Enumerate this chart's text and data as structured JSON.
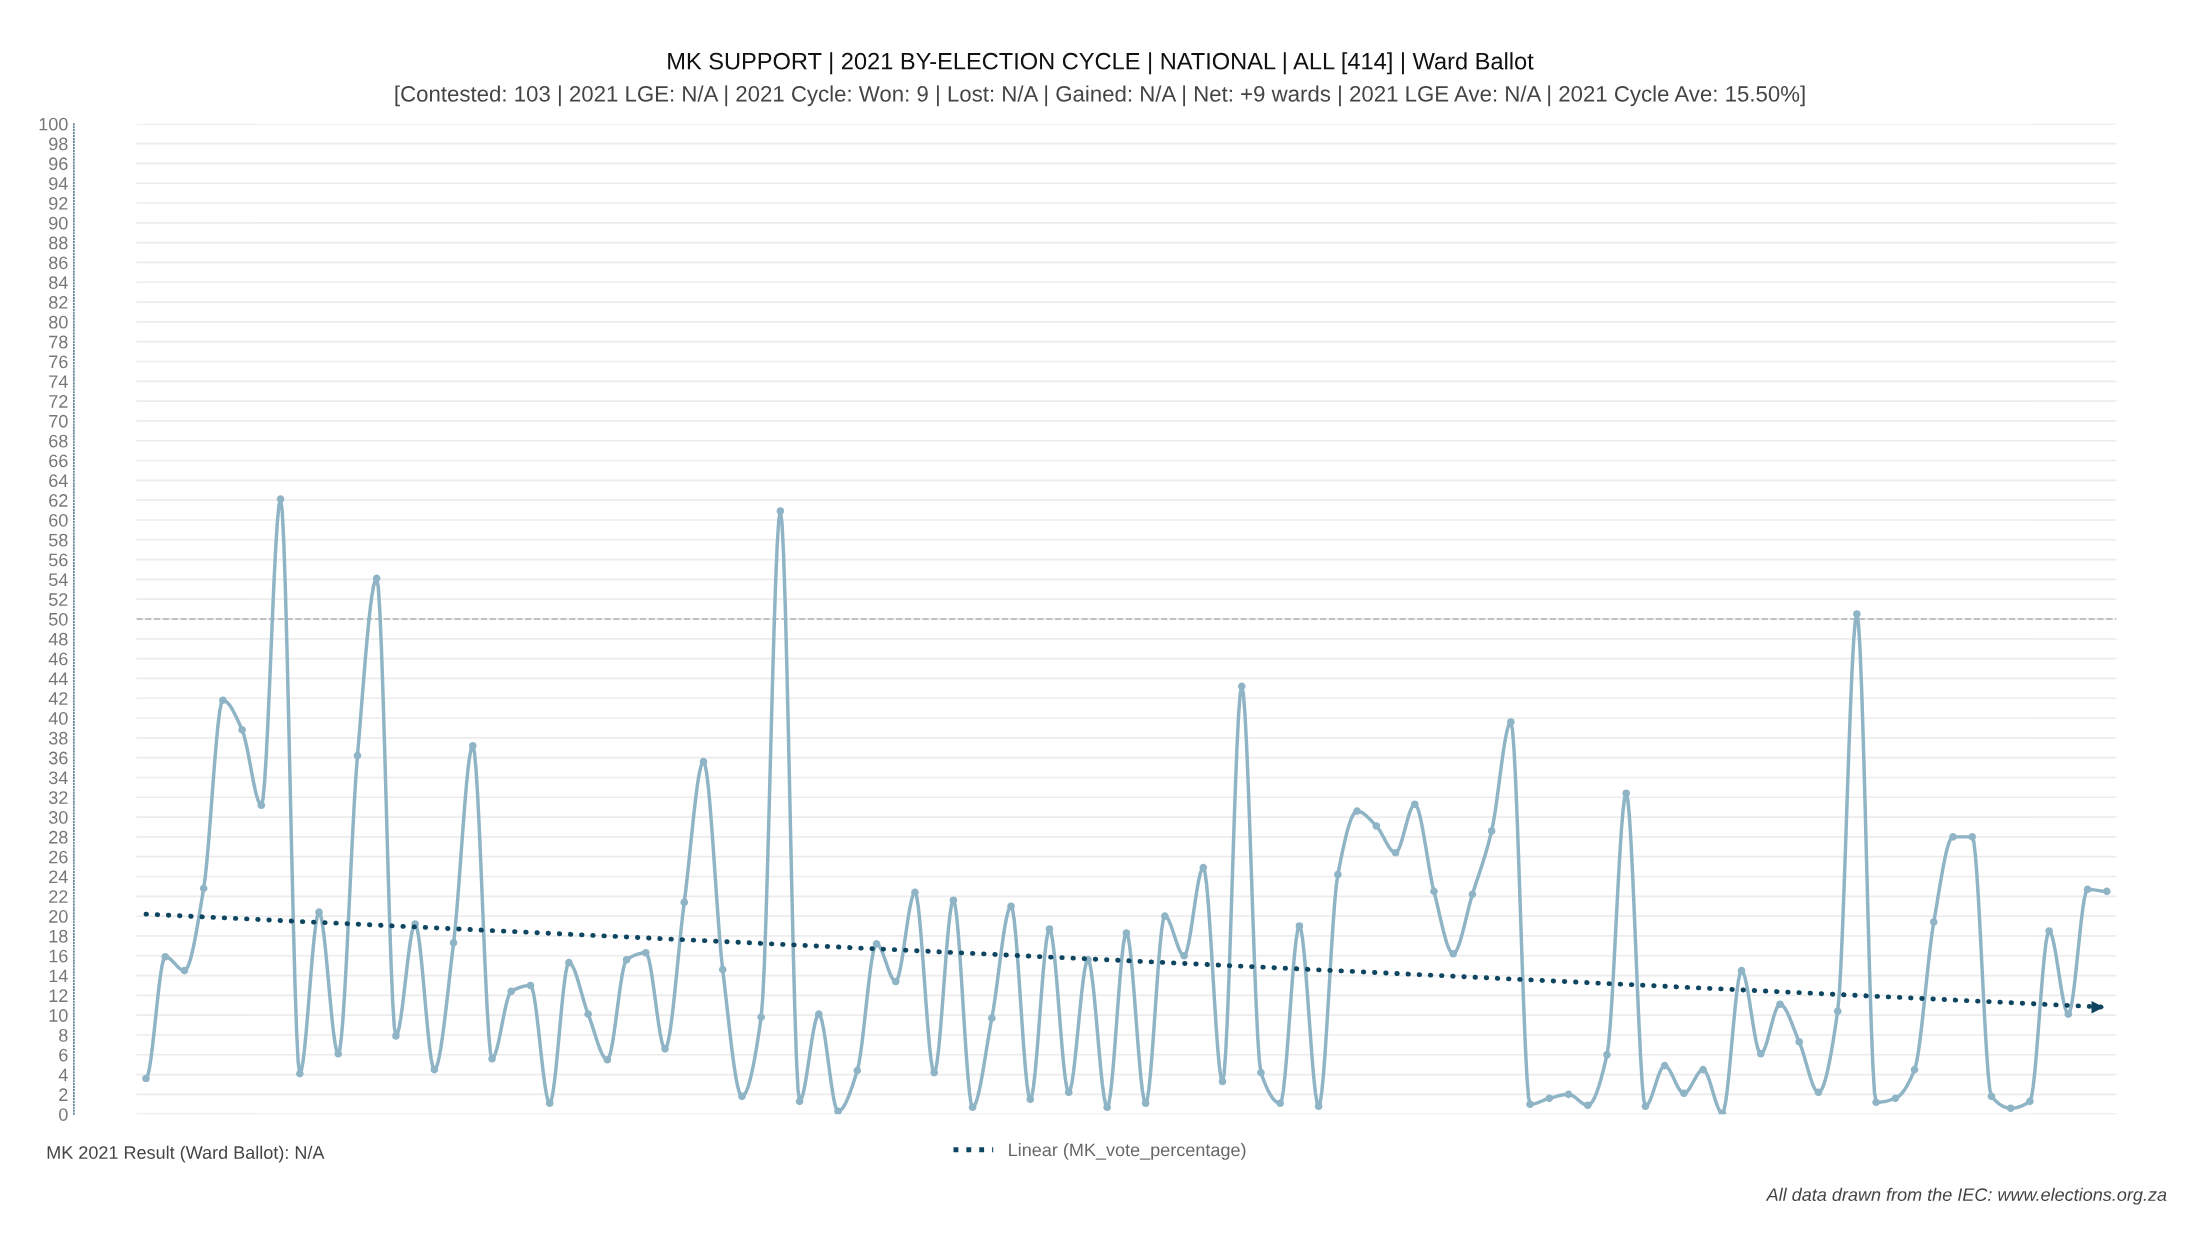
{
  "chart_data": {
    "type": "line",
    "title": "MK SUPPORT | 2021 BY-ELECTION CYCLE | NATIONAL | ALL [414] | Ward Ballot",
    "subtitle": "[Contested: 103 | 2021 LGE: N/A | 2021 Cycle: Won: 9 | Lost: N/A | Gained: N/A | Net: +9 wards | 2021 LGE Ave: N/A | 2021 Cycle Ave: 15.50%]",
    "categories": [
      null,
      null,
      null,
      null,
      null,
      null,
      null,
      null,
      null,
      null,
      null,
      null,
      null,
      null,
      null,
      null,
      null,
      null,
      null,
      null,
      null,
      null,
      null,
      null,
      null,
      null,
      null,
      null,
      null,
      null,
      null,
      null,
      null,
      null,
      null,
      null,
      null,
      null,
      null,
      null,
      null,
      null,
      null,
      null,
      null,
      null,
      null,
      null,
      null,
      null,
      null,
      null,
      null,
      null,
      null,
      null,
      null,
      null,
      null,
      null,
      null,
      null,
      null,
      null,
      null,
      null,
      null,
      null,
      null,
      null,
      null,
      null,
      null,
      null,
      null,
      null,
      null,
      null,
      null,
      null,
      null,
      null,
      null,
      null,
      null,
      null,
      null,
      null,
      null,
      null,
      null,
      null,
      null,
      null,
      null,
      null,
      null,
      null,
      null,
      null,
      null,
      null,
      null
    ],
    "series": [
      {
        "color": "#8fb4c5",
        "marker": "circle",
        "line_style": "solid",
        "values": [
          3.6,
          15.9,
          14.5,
          22.8,
          41.8,
          38.8,
          31.2,
          62.1,
          4.1,
          20.4,
          6.1,
          36.2,
          54.1,
          7.9,
          19.2,
          4.5,
          17.3,
          37.2,
          5.6,
          12.4,
          13.0,
          1.1,
          15.3,
          10.1,
          5.5,
          15.6,
          16.3,
          6.6,
          21.4,
          35.6,
          14.6,
          1.8,
          9.8,
          60.9,
          1.3,
          10.1,
          0.3,
          4.4,
          17.2,
          13.4,
          22.4,
          4.2,
          21.6,
          0.7,
          9.7,
          21.0,
          1.5,
          18.7,
          2.2,
          15.6,
          0.7,
          18.3,
          1.1,
          20.0,
          16.0,
          24.9,
          3.3,
          43.2,
          4.2,
          1.1,
          19.0,
          0.8,
          24.2,
          30.6,
          29.1,
          26.4,
          31.3,
          22.5,
          16.2,
          22.2,
          28.6,
          39.6,
          1.0,
          1.6,
          2.0,
          0.9,
          6.0,
          32.4,
          0.8,
          4.9,
          2.1,
          4.5,
          0.1,
          14.5,
          6.1,
          11.1,
          7.3,
          2.2,
          10.4,
          50.5,
          1.2,
          1.6,
          4.5,
          19.4,
          28.0,
          28.0,
          1.8,
          0.6,
          1.3,
          18.5,
          10.1,
          22.7,
          22.5
        ]
      },
      {
        "name": "Linear (MK_vote_percentage)",
        "color": "#0e4560",
        "marker": "none",
        "line_style": "dotted",
        "values": [
          20.2,
          null,
          null,
          null,
          null,
          null,
          null,
          null,
          null,
          null,
          null,
          null,
          null,
          null,
          null,
          null,
          null,
          null,
          null,
          null,
          null,
          null,
          null,
          null,
          null,
          null,
          null,
          null,
          null,
          null,
          null,
          null,
          null,
          null,
          null,
          null,
          null,
          null,
          null,
          null,
          null,
          null,
          null,
          null,
          null,
          null,
          null,
          null,
          null,
          null,
          null,
          null,
          null,
          null,
          null,
          null,
          null,
          null,
          null,
          null,
          null,
          null,
          null,
          null,
          null,
          null,
          null,
          null,
          null,
          null,
          null,
          null,
          null,
          null,
          null,
          null,
          null,
          null,
          null,
          null,
          null,
          null,
          null,
          null,
          null,
          null,
          null,
          null,
          null,
          null,
          null,
          null,
          null,
          null,
          null,
          null,
          null,
          null,
          null,
          null,
          null,
          null,
          10.8
        ]
      }
    ],
    "ylim": [
      0,
      100
    ],
    "yticks": [
      0,
      2,
      4,
      6,
      8,
      10,
      12,
      14,
      16,
      18,
      20,
      22,
      24,
      26,
      28,
      30,
      32,
      34,
      36,
      38,
      40,
      42,
      44,
      46,
      48,
      50,
      52,
      54,
      56,
      58,
      60,
      62,
      64,
      66,
      68,
      70,
      72,
      74,
      76,
      78,
      80,
      82,
      84,
      86,
      88,
      90,
      92,
      94,
      96,
      98,
      100
    ],
    "grid": "y",
    "legend": "bottom",
    "ref_lines": [
      {
        "axis": "y",
        "value": 50,
        "color": "#b0b0b0",
        "line_style": "dashed"
      }
    ],
    "annotations": [
      "MK 2021 Result (Ward Ballot): N/A",
      "All data drawn from the IEC: www.elections.org.za"
    ]
  }
}
